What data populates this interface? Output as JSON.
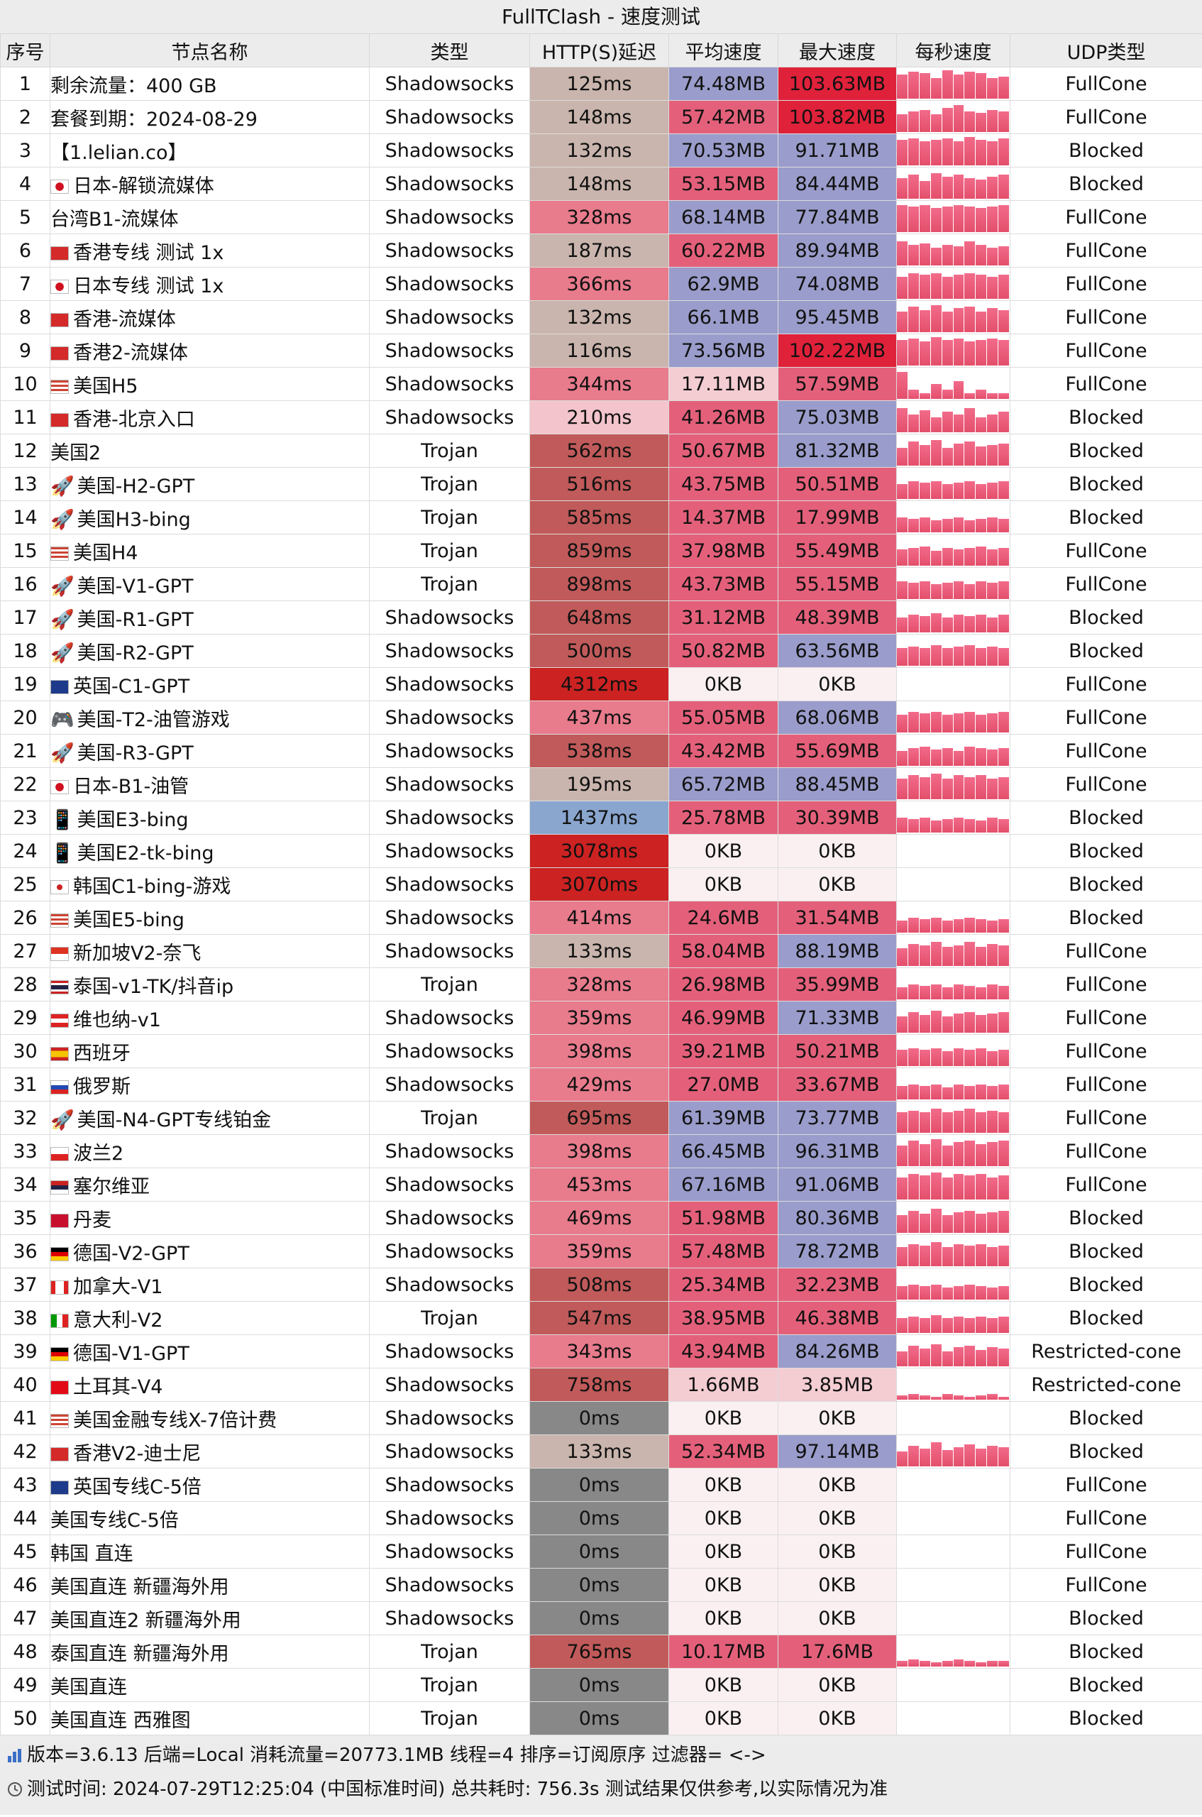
{
  "title": "FullTClash - 速度测试",
  "headers": [
    "序号",
    "节点名称",
    "类型",
    "HTTP(S)延迟",
    "平均速度",
    "最大速度",
    "每秒速度",
    "UDP类型"
  ],
  "colors": {
    "header_bg": "#ececec",
    "delay_fast": "#c9b5ad",
    "delay_mid": "#e87b8c",
    "delay_slow": "#c15a5a",
    "delay_very_slow": "#cc2222",
    "delay_blue": "#8aa6cf",
    "delay_zero": "#888888",
    "speed_high": "#9a9ccb",
    "speed_peak": "#e0213a",
    "speed_mid": "#e4607a",
    "speed_low": "#f4cdd3",
    "speed_zero": "#faf0f1"
  },
  "rows": [
    {
      "idx": "1",
      "flag": "",
      "name": "剩余流量：400 GB",
      "type": "Shadowsocks",
      "delay": "125ms",
      "avg": "74.48MB",
      "max": "103.63MB",
      "udp": "FullCone",
      "d": "fast",
      "a": "high",
      "m": "peak",
      "spark": [
        0.8,
        0.9,
        0.85,
        0.7,
        0.95,
        0.8,
        0.9,
        0.85,
        0.7,
        0.75
      ]
    },
    {
      "idx": "2",
      "flag": "",
      "name": "套餐到期：2024-08-29",
      "type": "Shadowsocks",
      "delay": "148ms",
      "avg": "57.42MB",
      "max": "103.82MB",
      "udp": "FullCone",
      "d": "fast",
      "a": "mid",
      "m": "peak",
      "spark": [
        0.6,
        0.7,
        0.75,
        0.6,
        0.8,
        0.9,
        0.7,
        0.65,
        0.75,
        0.7
      ]
    },
    {
      "idx": "3",
      "flag": "",
      "name": "【1.lelian.co】",
      "type": "Shadowsocks",
      "delay": "132ms",
      "avg": "70.53MB",
      "max": "91.71MB",
      "udp": "Blocked",
      "d": "fast",
      "a": "high",
      "m": "high",
      "spark": [
        0.85,
        0.9,
        0.8,
        0.85,
        0.9,
        0.8,
        0.95,
        0.85,
        0.8,
        0.9
      ]
    },
    {
      "idx": "4",
      "flag": "jp",
      "name": "日本-解锁流媒体",
      "type": "Shadowsocks",
      "delay": "148ms",
      "avg": "53.15MB",
      "max": "84.44MB",
      "udp": "Blocked",
      "d": "fast",
      "a": "mid",
      "m": "high",
      "spark": [
        0.7,
        0.8,
        0.6,
        0.85,
        0.75,
        0.8,
        0.7,
        0.65,
        0.75,
        0.8
      ]
    },
    {
      "idx": "5",
      "flag": "",
      "name": "台湾B1-流媒体",
      "type": "Shadowsocks",
      "delay": "328ms",
      "avg": "68.14MB",
      "max": "77.84MB",
      "udp": "FullCone",
      "d": "mid",
      "a": "high",
      "m": "high",
      "spark": [
        0.9,
        0.85,
        0.9,
        0.8,
        0.85,
        0.9,
        0.85,
        0.8,
        0.85,
        0.9
      ]
    },
    {
      "idx": "6",
      "flag": "hk",
      "name": "香港专线 测试 1x",
      "type": "Shadowsocks",
      "delay": "187ms",
      "avg": "60.22MB",
      "max": "89.94MB",
      "udp": "FullCone",
      "d": "fast",
      "a": "mid",
      "m": "high",
      "spark": [
        0.8,
        0.7,
        0.75,
        0.6,
        0.7,
        0.65,
        0.8,
        0.7,
        0.6,
        0.65
      ]
    },
    {
      "idx": "7",
      "flag": "jp",
      "name": "日本专线 测试 1x",
      "type": "Shadowsocks",
      "delay": "366ms",
      "avg": "62.9MB",
      "max": "74.08MB",
      "udp": "FullCone",
      "d": "mid",
      "a": "high",
      "m": "high",
      "spark": [
        0.75,
        0.85,
        0.8,
        0.85,
        0.75,
        0.8,
        0.85,
        0.8,
        0.75,
        0.8
      ]
    },
    {
      "idx": "8",
      "flag": "hk",
      "name": "香港-流媒体",
      "type": "Shadowsocks",
      "delay": "132ms",
      "avg": "66.1MB",
      "max": "95.45MB",
      "udp": "FullCone",
      "d": "fast",
      "a": "high",
      "m": "high",
      "spark": [
        0.7,
        0.85,
        0.75,
        0.9,
        0.7,
        0.8,
        0.85,
        0.7,
        0.8,
        0.75
      ]
    },
    {
      "idx": "9",
      "flag": "hk",
      "name": "香港2-流媒体",
      "type": "Shadowsocks",
      "delay": "116ms",
      "avg": "73.56MB",
      "max": "102.22MB",
      "udp": "FullCone",
      "d": "fast",
      "a": "high",
      "m": "peak",
      "spark": [
        0.85,
        0.9,
        0.8,
        0.95,
        0.85,
        0.9,
        0.8,
        0.85,
        0.9,
        0.85
      ]
    },
    {
      "idx": "10",
      "flag": "us",
      "name": "美国H5",
      "type": "Shadowsocks",
      "delay": "344ms",
      "avg": "17.11MB",
      "max": "57.59MB",
      "udp": "FullCone",
      "d": "mid",
      "a": "low",
      "m": "mid",
      "spark": [
        0.9,
        0.3,
        0.2,
        0.5,
        0.3,
        0.6,
        0.2,
        0.3,
        0.2,
        0.2
      ]
    },
    {
      "idx": "11",
      "flag": "hk",
      "name": "香港-北京入口",
      "type": "Shadowsocks",
      "delay": "210ms",
      "avg": "41.26MB",
      "max": "75.03MB",
      "udp": "Blocked",
      "d": "light",
      "a": "mid",
      "m": "high",
      "spark": [
        0.8,
        0.6,
        0.75,
        0.5,
        0.7,
        0.6,
        0.8,
        0.5,
        0.6,
        0.7
      ]
    },
    {
      "idx": "12",
      "flag": "",
      "name": "美国2",
      "type": "Trojan",
      "delay": "562ms",
      "avg": "50.67MB",
      "max": "81.32MB",
      "udp": "Blocked",
      "d": "slow",
      "a": "mid",
      "m": "high",
      "spark": [
        0.6,
        0.8,
        0.7,
        0.85,
        0.6,
        0.75,
        0.8,
        0.65,
        0.7,
        0.75
      ]
    },
    {
      "idx": "13",
      "flag": "rocket",
      "name": "美国-H2-GPT",
      "type": "Trojan",
      "delay": "516ms",
      "avg": "43.75MB",
      "max": "50.51MB",
      "udp": "Blocked",
      "d": "slow",
      "a": "mid",
      "m": "mid",
      "spark": [
        0.5,
        0.6,
        0.55,
        0.6,
        0.5,
        0.55,
        0.6,
        0.5,
        0.55,
        0.6
      ]
    },
    {
      "idx": "14",
      "flag": "rocket",
      "name": "美国H3-bing",
      "type": "Trojan",
      "delay": "585ms",
      "avg": "14.37MB",
      "max": "17.99MB",
      "udp": "Blocked",
      "d": "slow",
      "a": "mid",
      "m": "mid",
      "spark": [
        0.5,
        0.45,
        0.5,
        0.4,
        0.45,
        0.5,
        0.4,
        0.45,
        0.5,
        0.45
      ]
    },
    {
      "idx": "15",
      "flag": "us",
      "name": "美国H4",
      "type": "Trojan",
      "delay": "859ms",
      "avg": "37.98MB",
      "max": "55.49MB",
      "udp": "FullCone",
      "d": "slow",
      "a": "mid",
      "m": "mid",
      "spark": [
        0.55,
        0.6,
        0.65,
        0.5,
        0.6,
        0.55,
        0.6,
        0.65,
        0.55,
        0.6
      ]
    },
    {
      "idx": "16",
      "flag": "rocket",
      "name": "美国-V1-GPT",
      "type": "Trojan",
      "delay": "898ms",
      "avg": "43.73MB",
      "max": "55.15MB",
      "udp": "FullCone",
      "d": "slow",
      "a": "mid",
      "m": "mid",
      "spark": [
        0.6,
        0.55,
        0.6,
        0.5,
        0.55,
        0.6,
        0.5,
        0.6,
        0.55,
        0.6
      ]
    },
    {
      "idx": "17",
      "flag": "rocket",
      "name": "美国-R1-GPT",
      "type": "Shadowsocks",
      "delay": "648ms",
      "avg": "31.12MB",
      "max": "48.39MB",
      "udp": "Blocked",
      "d": "slow",
      "a": "mid",
      "m": "mid",
      "spark": [
        0.5,
        0.6,
        0.55,
        0.65,
        0.5,
        0.6,
        0.55,
        0.6,
        0.5,
        0.6
      ]
    },
    {
      "idx": "18",
      "flag": "rocket",
      "name": "美国-R2-GPT",
      "type": "Shadowsocks",
      "delay": "500ms",
      "avg": "50.82MB",
      "max": "63.56MB",
      "udp": "Blocked",
      "d": "slow",
      "a": "mid",
      "m": "high",
      "spark": [
        0.6,
        0.65,
        0.6,
        0.7,
        0.6,
        0.65,
        0.7,
        0.6,
        0.65,
        0.6
      ]
    },
    {
      "idx": "19",
      "flag": "gb",
      "name": "英国-C1-GPT",
      "type": "Shadowsocks",
      "delay": "4312ms",
      "avg": "0KB",
      "max": "0KB",
      "udp": "FullCone",
      "d": "vslow",
      "a": "zero",
      "m": "zero",
      "spark": []
    },
    {
      "idx": "20",
      "flag": "game",
      "name": "美国-T2-油管游戏",
      "type": "Shadowsocks",
      "delay": "437ms",
      "avg": "55.05MB",
      "max": "68.06MB",
      "udp": "FullCone",
      "d": "mid",
      "a": "mid",
      "m": "high",
      "spark": [
        0.6,
        0.7,
        0.65,
        0.7,
        0.6,
        0.65,
        0.7,
        0.6,
        0.65,
        0.7
      ]
    },
    {
      "idx": "21",
      "flag": "rocket",
      "name": "美国-R3-GPT",
      "type": "Shadowsocks",
      "delay": "538ms",
      "avg": "43.42MB",
      "max": "55.69MB",
      "udp": "FullCone",
      "d": "slow",
      "a": "mid",
      "m": "mid",
      "spark": [
        0.5,
        0.6,
        0.65,
        0.55,
        0.6,
        0.5,
        0.65,
        0.6,
        0.55,
        0.6
      ]
    },
    {
      "idx": "22",
      "flag": "jp",
      "name": "日本-B1-油管",
      "type": "Shadowsocks",
      "delay": "195ms",
      "avg": "65.72MB",
      "max": "88.45MB",
      "udp": "FullCone",
      "d": "fast",
      "a": "high",
      "m": "high",
      "spark": [
        0.7,
        0.8,
        0.75,
        0.85,
        0.7,
        0.8,
        0.75,
        0.8,
        0.7,
        0.75
      ]
    },
    {
      "idx": "23",
      "flag": "phone",
      "name": "美国E3-bing",
      "type": "Shadowsocks",
      "delay": "1437ms",
      "avg": "25.78MB",
      "max": "30.39MB",
      "udp": "Blocked",
      "d": "blue",
      "a": "mid",
      "m": "mid",
      "spark": [
        0.5,
        0.45,
        0.5,
        0.4,
        0.45,
        0.5,
        0.45,
        0.4,
        0.5,
        0.45
      ]
    },
    {
      "idx": "24",
      "flag": "phone",
      "name": "美国E2-tk-bing",
      "type": "Shadowsocks",
      "delay": "3078ms",
      "avg": "0KB",
      "max": "0KB",
      "udp": "Blocked",
      "d": "vslow",
      "a": "zero",
      "m": "zero",
      "spark": []
    },
    {
      "idx": "25",
      "flag": "kr",
      "name": "韩国C1-bing-游戏",
      "type": "Shadowsocks",
      "delay": "3070ms",
      "avg": "0KB",
      "max": "0KB",
      "udp": "Blocked",
      "d": "vslow",
      "a": "zero",
      "m": "zero",
      "spark": []
    },
    {
      "idx": "26",
      "flag": "us",
      "name": "美国E5-bing",
      "type": "Shadowsocks",
      "delay": "414ms",
      "avg": "24.6MB",
      "max": "31.54MB",
      "udp": "Blocked",
      "d": "mid",
      "a": "mid",
      "m": "mid",
      "spark": [
        0.4,
        0.5,
        0.45,
        0.5,
        0.4,
        0.45,
        0.5,
        0.45,
        0.4,
        0.45
      ]
    },
    {
      "idx": "27",
      "flag": "sg",
      "name": "新加坡V2-奈飞",
      "type": "Shadowsocks",
      "delay": "133ms",
      "avg": "58.04MB",
      "max": "88.19MB",
      "udp": "FullCone",
      "d": "fast",
      "a": "mid",
      "m": "high",
      "spark": [
        0.6,
        0.75,
        0.7,
        0.8,
        0.65,
        0.7,
        0.8,
        0.65,
        0.75,
        0.7
      ]
    },
    {
      "idx": "28",
      "flag": "th",
      "name": "泰国-v1-TK/抖音ip",
      "type": "Trojan",
      "delay": "328ms",
      "avg": "26.98MB",
      "max": "35.99MB",
      "udp": "FullCone",
      "d": "mid",
      "a": "mid",
      "m": "mid",
      "spark": [
        0.4,
        0.5,
        0.45,
        0.5,
        0.4,
        0.5,
        0.45,
        0.4,
        0.5,
        0.45
      ]
    },
    {
      "idx": "29",
      "flag": "at",
      "name": "维也纳-v1",
      "type": "Shadowsocks",
      "delay": "359ms",
      "avg": "46.99MB",
      "max": "71.33MB",
      "udp": "FullCone",
      "d": "mid",
      "a": "mid",
      "m": "high",
      "spark": [
        0.55,
        0.7,
        0.6,
        0.75,
        0.55,
        0.65,
        0.7,
        0.6,
        0.65,
        0.7
      ]
    },
    {
      "idx": "30",
      "flag": "es",
      "name": "西班牙",
      "type": "Shadowsocks",
      "delay": "398ms",
      "avg": "39.21MB",
      "max": "50.21MB",
      "udp": "FullCone",
      "d": "mid",
      "a": "mid",
      "m": "mid",
      "spark": [
        0.55,
        0.6,
        0.55,
        0.6,
        0.5,
        0.6,
        0.55,
        0.6,
        0.5,
        0.55
      ]
    },
    {
      "idx": "31",
      "flag": "ru",
      "name": "俄罗斯",
      "type": "Shadowsocks",
      "delay": "429ms",
      "avg": "27.0MB",
      "max": "33.67MB",
      "udp": "FullCone",
      "d": "mid",
      "a": "mid",
      "m": "mid",
      "spark": [
        0.45,
        0.5,
        0.45,
        0.5,
        0.4,
        0.5,
        0.45,
        0.5,
        0.45,
        0.5
      ]
    },
    {
      "idx": "32",
      "flag": "rocket",
      "name": "美国-N4-GPT专线铂金",
      "type": "Trojan",
      "delay": "695ms",
      "avg": "61.39MB",
      "max": "73.77MB",
      "udp": "FullCone",
      "d": "slow",
      "a": "high",
      "m": "high",
      "spark": [
        0.7,
        0.75,
        0.7,
        0.8,
        0.7,
        0.75,
        0.8,
        0.7,
        0.75,
        0.7
      ]
    },
    {
      "idx": "33",
      "flag": "pl",
      "name": "波兰2",
      "type": "Shadowsocks",
      "delay": "398ms",
      "avg": "66.45MB",
      "max": "96.31MB",
      "udp": "FullCone",
      "d": "mid",
      "a": "high",
      "m": "high",
      "spark": [
        0.7,
        0.85,
        0.75,
        0.9,
        0.7,
        0.8,
        0.85,
        0.75,
        0.8,
        0.85
      ]
    },
    {
      "idx": "34",
      "flag": "rs",
      "name": "塞尔维亚",
      "type": "Shadowsocks",
      "delay": "453ms",
      "avg": "67.16MB",
      "max": "91.06MB",
      "udp": "FullCone",
      "d": "mid",
      "a": "high",
      "m": "high",
      "spark": [
        0.75,
        0.85,
        0.8,
        0.9,
        0.75,
        0.85,
        0.8,
        0.85,
        0.75,
        0.8
      ]
    },
    {
      "idx": "35",
      "flag": "dk",
      "name": "丹麦",
      "type": "Shadowsocks",
      "delay": "469ms",
      "avg": "51.98MB",
      "max": "80.36MB",
      "udp": "Blocked",
      "d": "mid",
      "a": "mid",
      "m": "high",
      "spark": [
        0.6,
        0.75,
        0.65,
        0.8,
        0.6,
        0.7,
        0.75,
        0.65,
        0.7,
        0.75
      ]
    },
    {
      "idx": "36",
      "flag": "de",
      "name": "德国-V2-GPT",
      "type": "Shadowsocks",
      "delay": "359ms",
      "avg": "57.48MB",
      "max": "78.72MB",
      "udp": "Blocked",
      "d": "mid",
      "a": "mid",
      "m": "high",
      "spark": [
        0.65,
        0.75,
        0.7,
        0.8,
        0.65,
        0.75,
        0.7,
        0.75,
        0.65,
        0.7
      ]
    },
    {
      "idx": "37",
      "flag": "ca",
      "name": "加拿大-V1",
      "type": "Shadowsocks",
      "delay": "508ms",
      "avg": "25.34MB",
      "max": "32.23MB",
      "udp": "Blocked",
      "d": "slow",
      "a": "mid",
      "m": "mid",
      "spark": [
        0.45,
        0.5,
        0.45,
        0.5,
        0.4,
        0.45,
        0.5,
        0.45,
        0.4,
        0.45
      ]
    },
    {
      "idx": "38",
      "flag": "it",
      "name": "意大利-V2",
      "type": "Trojan",
      "delay": "547ms",
      "avg": "38.95MB",
      "max": "46.38MB",
      "udp": "Blocked",
      "d": "slow",
      "a": "mid",
      "m": "mid",
      "spark": [
        0.5,
        0.55,
        0.5,
        0.6,
        0.5,
        0.55,
        0.5,
        0.55,
        0.5,
        0.55
      ]
    },
    {
      "idx": "39",
      "flag": "de",
      "name": "德国-V1-GPT",
      "type": "Shadowsocks",
      "delay": "343ms",
      "avg": "43.94MB",
      "max": "84.26MB",
      "udp": "Restricted-cone",
      "d": "mid",
      "a": "mid",
      "m": "high",
      "spark": [
        0.5,
        0.7,
        0.6,
        0.75,
        0.5,
        0.65,
        0.7,
        0.55,
        0.65,
        0.6
      ]
    },
    {
      "idx": "40",
      "flag": "tr",
      "name": "土耳其-V4",
      "type": "Shadowsocks",
      "delay": "758ms",
      "avg": "1.66MB",
      "max": "3.85MB",
      "udp": "Restricted-cone",
      "d": "slow",
      "a": "low",
      "m": "low",
      "spark": [
        0.15,
        0.2,
        0.15,
        0.1,
        0.2,
        0.15,
        0.1,
        0.15,
        0.2,
        0.1
      ]
    },
    {
      "idx": "41",
      "flag": "us",
      "name": "美国金融专线X-7倍计费",
      "type": "Shadowsocks",
      "delay": "0ms",
      "avg": "0KB",
      "max": "0KB",
      "udp": "Blocked",
      "d": "zero",
      "a": "zero",
      "m": "zero",
      "spark": []
    },
    {
      "idx": "42",
      "flag": "hk",
      "name": "香港V2-迪士尼",
      "type": "Shadowsocks",
      "delay": "133ms",
      "avg": "52.34MB",
      "max": "97.14MB",
      "udp": "Blocked",
      "d": "fast",
      "a": "mid",
      "m": "high",
      "spark": [
        0.5,
        0.7,
        0.6,
        0.8,
        0.55,
        0.65,
        0.75,
        0.6,
        0.7,
        0.65
      ]
    },
    {
      "idx": "43",
      "flag": "gb",
      "name": "英国专线C-5倍",
      "type": "Shadowsocks",
      "delay": "0ms",
      "avg": "0KB",
      "max": "0KB",
      "udp": "FullCone",
      "d": "zero",
      "a": "zero",
      "m": "zero",
      "spark": []
    },
    {
      "idx": "44",
      "flag": "",
      "name": "美国专线C-5倍",
      "type": "Shadowsocks",
      "delay": "0ms",
      "avg": "0KB",
      "max": "0KB",
      "udp": "FullCone",
      "d": "zero",
      "a": "zero",
      "m": "zero",
      "spark": []
    },
    {
      "idx": "45",
      "flag": "",
      "name": "韩国 直连",
      "type": "Shadowsocks",
      "delay": "0ms",
      "avg": "0KB",
      "max": "0KB",
      "udp": "FullCone",
      "d": "zero",
      "a": "zero",
      "m": "zero",
      "spark": []
    },
    {
      "idx": "46",
      "flag": "",
      "name": "美国直连 新疆海外用",
      "type": "Shadowsocks",
      "delay": "0ms",
      "avg": "0KB",
      "max": "0KB",
      "udp": "FullCone",
      "d": "zero",
      "a": "zero",
      "m": "zero",
      "spark": []
    },
    {
      "idx": "47",
      "flag": "",
      "name": "美国直连2 新疆海外用",
      "type": "Shadowsocks",
      "delay": "0ms",
      "avg": "0KB",
      "max": "0KB",
      "udp": "Blocked",
      "d": "zero",
      "a": "zero",
      "m": "zero",
      "spark": []
    },
    {
      "idx": "48",
      "flag": "",
      "name": "泰国直连 新疆海外用",
      "type": "Trojan",
      "delay": "765ms",
      "avg": "10.17MB",
      "max": "17.6MB",
      "udp": "Blocked",
      "d": "slow",
      "a": "mid",
      "m": "mid",
      "spark": [
        0.2,
        0.25,
        0.2,
        0.15,
        0.2,
        0.25,
        0.2,
        0.15,
        0.2,
        0.2
      ]
    },
    {
      "idx": "49",
      "flag": "",
      "name": "美国直连",
      "type": "Trojan",
      "delay": "0ms",
      "avg": "0KB",
      "max": "0KB",
      "udp": "Blocked",
      "d": "zero",
      "a": "zero",
      "m": "zero",
      "spark": []
    },
    {
      "idx": "50",
      "flag": "",
      "name": "美国直连 西雅图",
      "type": "Trojan",
      "delay": "0ms",
      "avg": "0KB",
      "max": "0KB",
      "udp": "Blocked",
      "d": "zero",
      "a": "zero",
      "m": "zero",
      "spark": []
    }
  ],
  "footer": {
    "line1": "版本=3.6.13  后端=Local  消耗流量=20773.1MB   线程=4  排序=订阅原序  过滤器= <->",
    "line2": "测试时间: 2024-07-29T12:25:04 (中国标准时间) 总共耗时: 756.3s 测试结果仅供参考,以实际情况为准"
  }
}
